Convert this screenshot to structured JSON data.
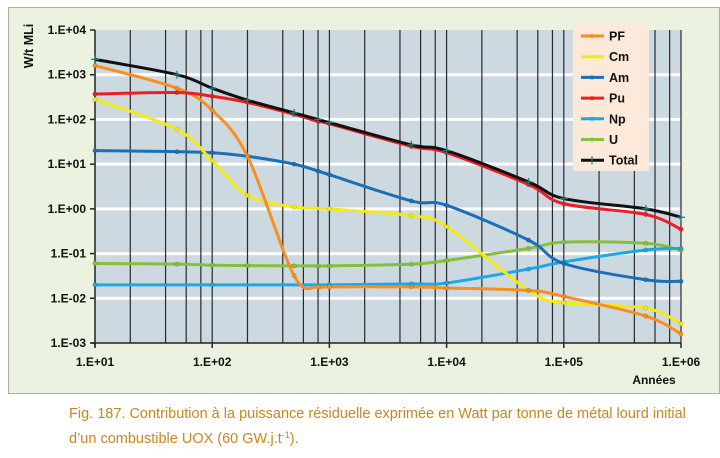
{
  "chart_data": {
    "type": "line",
    "title": "",
    "xlabel": "Années",
    "ylabel": "W/t MLi",
    "xscale": "log",
    "yscale": "log",
    "xlim": [
      10,
      1000000
    ],
    "ylim": [
      0.001,
      10000
    ],
    "xticks": [
      "1.E+01",
      "1.E+02",
      "1.E+03",
      "1.E+04",
      "1.E+05",
      "1.E+06"
    ],
    "yticks": [
      "1.E+04",
      "1.E+03",
      "1.E+02",
      "1.E+01",
      "1.E+00",
      "1.E-01",
      "1.E-02",
      "1.E-03"
    ],
    "grid": "horizontal major lines white; vertical lines at 2,4,6,8 per decade black",
    "legend_position": "top-right",
    "colors": {
      "plot_background": "#cdd9e1",
      "panel_background": "#ebf2df",
      "legend_background": "#fde9d9"
    },
    "series": [
      {
        "name": "PF",
        "color": "#f7901e",
        "x": [
          10,
          50,
          100,
          200,
          500,
          800,
          1000,
          5000,
          10000,
          50000,
          100000,
          500000,
          1000000
        ],
        "y": [
          1600,
          500,
          160,
          15,
          0.032,
          0.018,
          0.018,
          0.018,
          0.017,
          0.015,
          0.011,
          0.004,
          0.0016
        ]
      },
      {
        "name": "Cm",
        "color": "#f5ea14",
        "x": [
          10,
          50,
          100,
          200,
          500,
          1000,
          5000,
          10000,
          50000,
          100000,
          500000,
          1000000
        ],
        "y": [
          280,
          60,
          12,
          2,
          1.1,
          1.0,
          0.7,
          0.4,
          0.015,
          0.008,
          0.006,
          0.0027
        ]
      },
      {
        "name": "Am",
        "color": "#1b6fb9",
        "x": [
          10,
          50,
          100,
          200,
          500,
          800,
          1000,
          5000,
          10000,
          50000,
          100000,
          500000,
          1000000
        ],
        "y": [
          20,
          19,
          18,
          15,
          10,
          7,
          5.8,
          1.5,
          1.2,
          0.2,
          0.06,
          0.026,
          0.024
        ]
      },
      {
        "name": "Pu",
        "color": "#ee1c24",
        "x": [
          10,
          50,
          100,
          200,
          500,
          800,
          1000,
          5000,
          10000,
          50000,
          100000,
          500000,
          1000000
        ],
        "y": [
          370,
          400,
          330,
          240,
          130,
          90,
          80,
          25,
          18,
          3.5,
          1.3,
          0.75,
          0.35
        ]
      },
      {
        "name": "Np",
        "color": "#1aa8e6",
        "x": [
          10,
          100,
          1000,
          5000,
          10000,
          50000,
          100000,
          500000,
          1000000
        ],
        "y": [
          0.02,
          0.02,
          0.02,
          0.021,
          0.022,
          0.045,
          0.065,
          0.12,
          0.13
        ]
      },
      {
        "name": "U",
        "color": "#86bf3b",
        "x": [
          10,
          50,
          100,
          200,
          500,
          800,
          1000,
          5000,
          10000,
          50000,
          100000,
          500000,
          1000000
        ],
        "y": [
          0.06,
          0.058,
          0.055,
          0.054,
          0.053,
          0.053,
          0.053,
          0.058,
          0.07,
          0.13,
          0.18,
          0.17,
          0.12
        ]
      },
      {
        "name": "Total",
        "color": "#111111",
        "marker_color": "#1d7a78",
        "x": [
          10,
          50,
          100,
          200,
          500,
          800,
          1000,
          5000,
          10000,
          50000,
          100000,
          500000,
          1000000
        ],
        "y": [
          2200,
          1000,
          500,
          270,
          140,
          100,
          85,
          27,
          20,
          4,
          1.7,
          1.0,
          0.65
        ]
      }
    ]
  },
  "caption": {
    "text_main": "Fig. 187. Contribution à la puissance résiduelle exprimée en Watt par tonne de métal lourd initial d’un combustible UOX (60 GW.j.t",
    "superscript": "-1",
    "text_end": ")."
  }
}
